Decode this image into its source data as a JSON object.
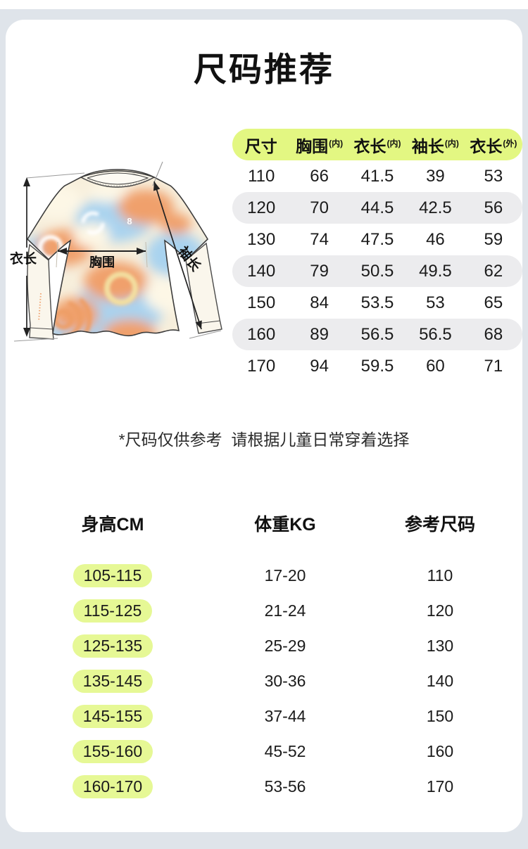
{
  "page": {
    "title": "尺码推荐",
    "note": "*尺码仅供参考  请根据儿童日常穿着选择"
  },
  "colors": {
    "background_band": "#dfe4ea",
    "card": "#ffffff",
    "highlight_lime": "#e3f782",
    "row_alt_gray": "#ececee",
    "tiedye_blue": "#a9d3ef",
    "tiedye_orange": "#f0a06c",
    "tiedye_cream": "#f7efdc"
  },
  "diagram": {
    "length_label": "衣长",
    "chest_label": "胸围",
    "sleeve_label": "袖长",
    "logo_mark": "8"
  },
  "size_table": {
    "headers": [
      {
        "text": "尺寸",
        "sup": ""
      },
      {
        "text": "胸围",
        "sup": "(内)"
      },
      {
        "text": "衣长",
        "sup": "(内)"
      },
      {
        "text": "袖长",
        "sup": "(内)"
      },
      {
        "text": "衣长",
        "sup": "(外)"
      }
    ],
    "rows": [
      [
        "110",
        "66",
        "41.5",
        "39",
        "53"
      ],
      [
        "120",
        "70",
        "44.5",
        "42.5",
        "56"
      ],
      [
        "130",
        "74",
        "47.5",
        "46",
        "59"
      ],
      [
        "140",
        "79",
        "50.5",
        "49.5",
        "62"
      ],
      [
        "150",
        "84",
        "53.5",
        "53",
        "65"
      ],
      [
        "160",
        "89",
        "56.5",
        "56.5",
        "68"
      ],
      [
        "170",
        "94",
        "59.5",
        "60",
        "71"
      ]
    ]
  },
  "fit_table": {
    "headers": [
      "身高CM",
      "体重KG",
      "参考尺码"
    ],
    "rows": [
      [
        "105-115",
        "17-20",
        "110"
      ],
      [
        "115-125",
        "21-24",
        "120"
      ],
      [
        "125-135",
        "25-29",
        "130"
      ],
      [
        "135-145",
        "30-36",
        "140"
      ],
      [
        "145-155",
        "37-44",
        "150"
      ],
      [
        "155-160",
        "45-52",
        "160"
      ],
      [
        "160-170",
        "53-56",
        "170"
      ]
    ]
  }
}
